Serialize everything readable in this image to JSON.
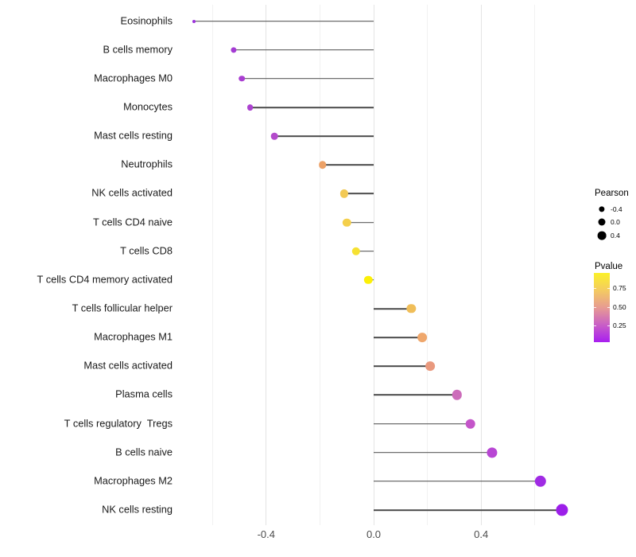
{
  "colors": {
    "background": "#ffffff",
    "stem": "#4a4a4a",
    "grid_major": "#e4e4e4",
    "grid_minor": "#f1f1f1",
    "axis_tick_label": "#4d4d4d",
    "category_label": "#1a1a1a",
    "legend_dot": "#000000"
  },
  "chart_data": {
    "type": "scatter",
    "variant": "lollipop",
    "orientation": "horizontal",
    "title": "",
    "xlabel": "",
    "ylabel": "",
    "grid": "vertical major + minor, no horizontal",
    "legend_position": "right",
    "xlim": [
      -0.69,
      0.77
    ],
    "x_ticks": [
      {
        "label": "-0.4",
        "value": -0.4
      },
      {
        "label": "0.0",
        "value": 0.0
      },
      {
        "label": "0.4",
        "value": 0.4
      }
    ],
    "x_minor_ticks": [
      -0.6,
      -0.2,
      0.2,
      0.6
    ],
    "points": [
      {
        "label": "Eosinophils",
        "pearson": -0.67,
        "color": "#9c32dc",
        "radius": 2.0
      },
      {
        "label": "B cells memory",
        "pearson": -0.52,
        "color": "#a43bd3",
        "radius": 3.6
      },
      {
        "label": "Macrophages M0",
        "pearson": -0.49,
        "color": "#a93ed1",
        "radius": 3.8
      },
      {
        "label": "Monocytes",
        "pearson": -0.46,
        "color": "#ac41d0",
        "radius": 3.9
      },
      {
        "label": "Mast cells resting",
        "pearson": -0.37,
        "color": "#b34bcb",
        "radius": 4.3
      },
      {
        "label": "Neutrophils",
        "pearson": -0.19,
        "color": "#eca167",
        "radius": 4.8
      },
      {
        "label": "NK cells activated",
        "pearson": -0.11,
        "color": "#f2c955",
        "radius": 5.1
      },
      {
        "label": "T cells CD4 naive",
        "pearson": -0.1,
        "color": "#f4cf4b",
        "radius": 5.2
      },
      {
        "label": "T cells CD8",
        "pearson": -0.065,
        "color": "#f6e132",
        "radius": 5.2
      },
      {
        "label": "T cells CD4 memory activated",
        "pearson": -0.02,
        "color": "#fcf007",
        "radius": 5.2
      },
      {
        "label": "T cells follicular helper",
        "pearson": 0.14,
        "color": "#f0be59",
        "radius": 5.7
      },
      {
        "label": "Macrophages M1",
        "pearson": 0.18,
        "color": "#efa76c",
        "radius": 5.9
      },
      {
        "label": "Mast cells activated",
        "pearson": 0.21,
        "color": "#e9997e",
        "radius": 5.9
      },
      {
        "label": "Plasma cells",
        "pearson": 0.31,
        "color": "#cc6cba",
        "radius": 6.2
      },
      {
        "label": "T cells regulatory  Tregs",
        "pearson": 0.36,
        "color": "#c455c9",
        "radius": 6.3
      },
      {
        "label": "B cells naive",
        "pearson": 0.44,
        "color": "#b846d4",
        "radius": 6.6
      },
      {
        "label": "Macrophages M2",
        "pearson": 0.62,
        "color": "#a02be4",
        "radius": 7.2
      },
      {
        "label": "NK cells resting",
        "pearson": 0.7,
        "color": "#9c1fe9",
        "radius": 7.6
      }
    ],
    "legend_size": {
      "title": "Pearson",
      "dot_color": "#000000",
      "items": [
        {
          "label": "-0.4",
          "radius": 3.6
        },
        {
          "label": "0.0",
          "radius": 4.5
        },
        {
          "label": "0.4",
          "radius": 5.4
        }
      ]
    },
    "legend_color": {
      "title": "Pvalue",
      "labels": [
        "0.75",
        "0.50",
        "0.25"
      ],
      "gradient_stops_bottom_to_top": [
        "#a81ef0",
        "#c95fc6",
        "#e79b92",
        "#f4cb61",
        "#fbf129"
      ],
      "note_low_to_high": "purple (low p) at bottom to yellow (high p) at top"
    }
  }
}
